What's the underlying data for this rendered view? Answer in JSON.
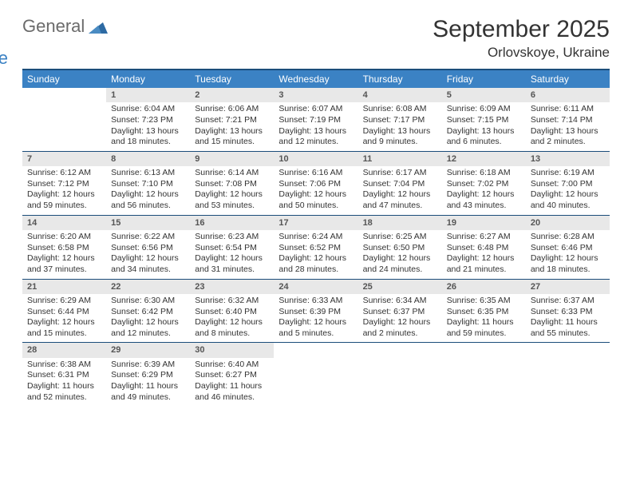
{
  "brand": {
    "part1": "General",
    "part2": "Blue",
    "icon_color": "#2d6aa3"
  },
  "title": "September 2025",
  "location": "Orlovskoye, Ukraine",
  "header_bg": "#3b82c4",
  "border_color": "#1b4d7a",
  "daynum_bg": "#e8e8e8",
  "text_color": "#333333",
  "day_names": [
    "Sunday",
    "Monday",
    "Tuesday",
    "Wednesday",
    "Thursday",
    "Friday",
    "Saturday"
  ],
  "weeks": [
    [
      {
        "empty": true
      },
      {
        "n": "1",
        "sunrise": "Sunrise: 6:04 AM",
        "sunset": "Sunset: 7:23 PM",
        "daylight": "Daylight: 13 hours and 18 minutes."
      },
      {
        "n": "2",
        "sunrise": "Sunrise: 6:06 AM",
        "sunset": "Sunset: 7:21 PM",
        "daylight": "Daylight: 13 hours and 15 minutes."
      },
      {
        "n": "3",
        "sunrise": "Sunrise: 6:07 AM",
        "sunset": "Sunset: 7:19 PM",
        "daylight": "Daylight: 13 hours and 12 minutes."
      },
      {
        "n": "4",
        "sunrise": "Sunrise: 6:08 AM",
        "sunset": "Sunset: 7:17 PM",
        "daylight": "Daylight: 13 hours and 9 minutes."
      },
      {
        "n": "5",
        "sunrise": "Sunrise: 6:09 AM",
        "sunset": "Sunset: 7:15 PM",
        "daylight": "Daylight: 13 hours and 6 minutes."
      },
      {
        "n": "6",
        "sunrise": "Sunrise: 6:11 AM",
        "sunset": "Sunset: 7:14 PM",
        "daylight": "Daylight: 13 hours and 2 minutes."
      }
    ],
    [
      {
        "n": "7",
        "sunrise": "Sunrise: 6:12 AM",
        "sunset": "Sunset: 7:12 PM",
        "daylight": "Daylight: 12 hours and 59 minutes."
      },
      {
        "n": "8",
        "sunrise": "Sunrise: 6:13 AM",
        "sunset": "Sunset: 7:10 PM",
        "daylight": "Daylight: 12 hours and 56 minutes."
      },
      {
        "n": "9",
        "sunrise": "Sunrise: 6:14 AM",
        "sunset": "Sunset: 7:08 PM",
        "daylight": "Daylight: 12 hours and 53 minutes."
      },
      {
        "n": "10",
        "sunrise": "Sunrise: 6:16 AM",
        "sunset": "Sunset: 7:06 PM",
        "daylight": "Daylight: 12 hours and 50 minutes."
      },
      {
        "n": "11",
        "sunrise": "Sunrise: 6:17 AM",
        "sunset": "Sunset: 7:04 PM",
        "daylight": "Daylight: 12 hours and 47 minutes."
      },
      {
        "n": "12",
        "sunrise": "Sunrise: 6:18 AM",
        "sunset": "Sunset: 7:02 PM",
        "daylight": "Daylight: 12 hours and 43 minutes."
      },
      {
        "n": "13",
        "sunrise": "Sunrise: 6:19 AM",
        "sunset": "Sunset: 7:00 PM",
        "daylight": "Daylight: 12 hours and 40 minutes."
      }
    ],
    [
      {
        "n": "14",
        "sunrise": "Sunrise: 6:20 AM",
        "sunset": "Sunset: 6:58 PM",
        "daylight": "Daylight: 12 hours and 37 minutes."
      },
      {
        "n": "15",
        "sunrise": "Sunrise: 6:22 AM",
        "sunset": "Sunset: 6:56 PM",
        "daylight": "Daylight: 12 hours and 34 minutes."
      },
      {
        "n": "16",
        "sunrise": "Sunrise: 6:23 AM",
        "sunset": "Sunset: 6:54 PM",
        "daylight": "Daylight: 12 hours and 31 minutes."
      },
      {
        "n": "17",
        "sunrise": "Sunrise: 6:24 AM",
        "sunset": "Sunset: 6:52 PM",
        "daylight": "Daylight: 12 hours and 28 minutes."
      },
      {
        "n": "18",
        "sunrise": "Sunrise: 6:25 AM",
        "sunset": "Sunset: 6:50 PM",
        "daylight": "Daylight: 12 hours and 24 minutes."
      },
      {
        "n": "19",
        "sunrise": "Sunrise: 6:27 AM",
        "sunset": "Sunset: 6:48 PM",
        "daylight": "Daylight: 12 hours and 21 minutes."
      },
      {
        "n": "20",
        "sunrise": "Sunrise: 6:28 AM",
        "sunset": "Sunset: 6:46 PM",
        "daylight": "Daylight: 12 hours and 18 minutes."
      }
    ],
    [
      {
        "n": "21",
        "sunrise": "Sunrise: 6:29 AM",
        "sunset": "Sunset: 6:44 PM",
        "daylight": "Daylight: 12 hours and 15 minutes."
      },
      {
        "n": "22",
        "sunrise": "Sunrise: 6:30 AM",
        "sunset": "Sunset: 6:42 PM",
        "daylight": "Daylight: 12 hours and 12 minutes."
      },
      {
        "n": "23",
        "sunrise": "Sunrise: 6:32 AM",
        "sunset": "Sunset: 6:40 PM",
        "daylight": "Daylight: 12 hours and 8 minutes."
      },
      {
        "n": "24",
        "sunrise": "Sunrise: 6:33 AM",
        "sunset": "Sunset: 6:39 PM",
        "daylight": "Daylight: 12 hours and 5 minutes."
      },
      {
        "n": "25",
        "sunrise": "Sunrise: 6:34 AM",
        "sunset": "Sunset: 6:37 PM",
        "daylight": "Daylight: 12 hours and 2 minutes."
      },
      {
        "n": "26",
        "sunrise": "Sunrise: 6:35 AM",
        "sunset": "Sunset: 6:35 PM",
        "daylight": "Daylight: 11 hours and 59 minutes."
      },
      {
        "n": "27",
        "sunrise": "Sunrise: 6:37 AM",
        "sunset": "Sunset: 6:33 PM",
        "daylight": "Daylight: 11 hours and 55 minutes."
      }
    ],
    [
      {
        "n": "28",
        "sunrise": "Sunrise: 6:38 AM",
        "sunset": "Sunset: 6:31 PM",
        "daylight": "Daylight: 11 hours and 52 minutes."
      },
      {
        "n": "29",
        "sunrise": "Sunrise: 6:39 AM",
        "sunset": "Sunset: 6:29 PM",
        "daylight": "Daylight: 11 hours and 49 minutes."
      },
      {
        "n": "30",
        "sunrise": "Sunrise: 6:40 AM",
        "sunset": "Sunset: 6:27 PM",
        "daylight": "Daylight: 11 hours and 46 minutes."
      },
      {
        "empty": true
      },
      {
        "empty": true
      },
      {
        "empty": true
      },
      {
        "empty": true
      }
    ]
  ]
}
